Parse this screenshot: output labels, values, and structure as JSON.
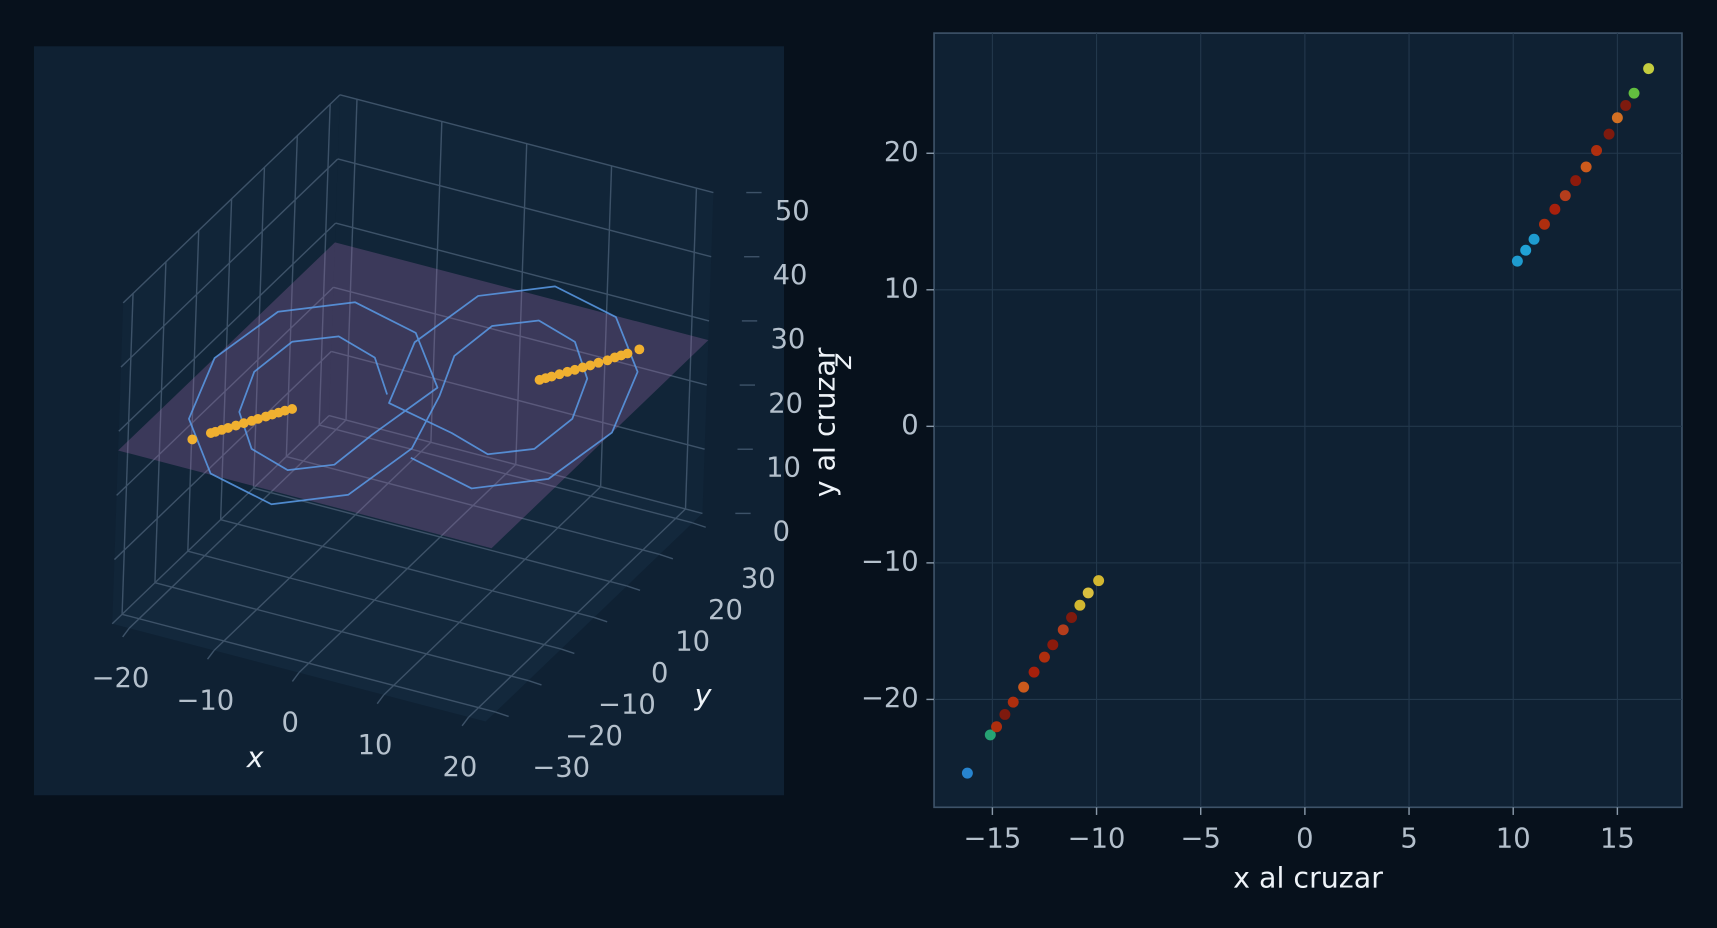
{
  "chart_data": [
    {
      "type": "line3d",
      "xlabel": "x",
      "ylabel": "y",
      "zlabel": "z",
      "xlim": [
        -22,
        22
      ],
      "ylim": [
        -33,
        33
      ],
      "zlim": [
        0,
        50
      ],
      "xticks": [
        {
          "value": -20,
          "label": "−20"
        },
        {
          "value": -10,
          "label": "−10"
        },
        0,
        10,
        20
      ],
      "yticks": [
        {
          "value": -30,
          "label": "−30"
        },
        {
          "value": -20,
          "label": "−20"
        },
        {
          "value": -10,
          "label": "−10"
        },
        0,
        10,
        20,
        30
      ],
      "zticks": [
        0,
        10,
        20,
        30,
        40,
        50
      ],
      "plane_z": 27,
      "plane_color": "#a06aa8",
      "series": [
        {
          "color": "#5b9be8",
          "x": [
            -2.5,
            -3.6,
            -6.6,
            -10.4,
            -13.4,
            -14.5,
            -13.4,
            -10.4,
            -6.6,
            -3.6,
            1.5,
            -0.4,
            -5.4,
            -11.6,
            -16.6,
            -18.5,
            -16.6,
            -11.6,
            -5.4,
            -0.4,
            2.5,
            3.6,
            6.6,
            10.4,
            13.4,
            14.5,
            13.4,
            10.4,
            6.6,
            3.6,
            -1.5,
            0.4,
            5.4,
            11.6,
            16.6,
            18.5,
            16.6,
            11.6,
            5.4,
            0.4
          ],
          "y": [
            -1.5,
            -2.8,
            -6.3,
            -10.7,
            -14.2,
            -15.5,
            -14.2,
            -10.7,
            -6.3,
            -2.8,
            3.5,
            1.2,
            -4.8,
            -12.2,
            -18.2,
            -20.5,
            -18.2,
            -12.2,
            -4.8,
            1.2,
            1.5,
            2.8,
            6.3,
            10.7,
            14.2,
            15.5,
            14.2,
            10.7,
            6.3,
            2.8,
            -3.5,
            -1.2,
            4.8,
            12.2,
            18.2,
            20.5,
            18.2,
            12.2,
            4.8,
            -1.2
          ],
          "z": [
            27,
            33,
            37,
            37,
            33,
            27,
            21,
            17,
            17,
            21,
            27,
            36,
            42,
            42,
            36,
            27,
            18,
            12,
            12,
            18,
            27,
            33,
            37,
            37,
            33,
            27,
            21,
            17,
            17,
            21,
            27,
            36,
            42,
            42,
            36,
            27,
            18,
            12,
            12,
            18
          ]
        }
      ],
      "crossings": {
        "color": "#f0b030",
        "x": [
          -16.2,
          -15.1,
          -14.8,
          -14.4,
          -14.0,
          -13.5,
          -13.0,
          -12.5,
          -12.1,
          -11.6,
          -11.2,
          -10.8,
          -10.4,
          -9.9,
          10.2,
          10.6,
          11.0,
          11.5,
          12.0,
          12.5,
          13.0,
          13.5,
          14.0,
          14.6,
          15.0,
          15.4,
          15.8,
          16.5
        ],
        "y": [
          -25.4,
          -22.6,
          -22.0,
          -21.1,
          -20.2,
          -19.1,
          -18.0,
          -16.9,
          -16.0,
          -14.9,
          -14.0,
          -13.1,
          -12.2,
          -11.3,
          12.1,
          12.9,
          13.7,
          14.8,
          15.9,
          16.9,
          18.0,
          19.0,
          20.2,
          21.4,
          22.6,
          23.5,
          24.4,
          26.2
        ],
        "z": [
          27,
          27,
          27,
          27,
          27,
          27,
          27,
          27,
          27,
          27,
          27,
          27,
          27,
          27,
          27,
          27,
          27,
          27,
          27,
          27,
          27,
          27,
          27,
          27,
          27,
          27,
          27,
          27
        ]
      }
    },
    {
      "type": "scatter",
      "xlabel": "x al cruzar",
      "ylabel": "y al cruzar",
      "xlim": [
        -17.8,
        18.1
      ],
      "ylim": [
        -27.9,
        28.8
      ],
      "grid": true,
      "xticks": [
        {
          "value": -15,
          "label": "−15"
        },
        {
          "value": -10,
          "label": "−10"
        },
        {
          "value": -5,
          "label": "−5"
        },
        0,
        5,
        10,
        15
      ],
      "yticks": [
        {
          "value": -20,
          "label": "−20"
        },
        {
          "value": -10,
          "label": "−10"
        },
        0,
        10,
        20
      ],
      "x": [
        -16.2,
        -15.1,
        -14.8,
        -14.4,
        -14.0,
        -13.5,
        -13.0,
        -12.5,
        -12.1,
        -11.6,
        -11.2,
        -10.8,
        -10.4,
        -9.9,
        10.2,
        10.6,
        11.0,
        11.5,
        12.0,
        12.5,
        13.0,
        13.5,
        14.0,
        14.6,
        15.0,
        15.4,
        15.8,
        16.5
      ],
      "y": [
        -25.4,
        -22.6,
        -22.0,
        -21.1,
        -20.2,
        -19.1,
        -18.0,
        -16.9,
        -16.0,
        -14.9,
        -14.0,
        -13.1,
        -12.2,
        -11.3,
        12.1,
        12.9,
        13.7,
        14.8,
        15.9,
        16.9,
        18.0,
        19.0,
        20.2,
        21.4,
        22.6,
        23.5,
        24.4,
        26.2
      ],
      "colors": [
        "#2a8fe0",
        "#29b07a",
        "#c0300a",
        "#8b1a0a",
        "#c0300a",
        "#e0601a",
        "#b82008",
        "#c0300a",
        "#9a1a08",
        "#c8401a",
        "#8b1a0a",
        "#e8c830",
        "#f0d040",
        "#e8c830",
        "#20a8e0",
        "#22b0e8",
        "#20a8e0",
        "#c0300a",
        "#b82008",
        "#c8401a",
        "#9a1a08",
        "#e0601a",
        "#c0300a",
        "#8b1a0a",
        "#e87820",
        "#8b1a0a",
        "#6cd040",
        "#d8e040"
      ]
    }
  ]
}
